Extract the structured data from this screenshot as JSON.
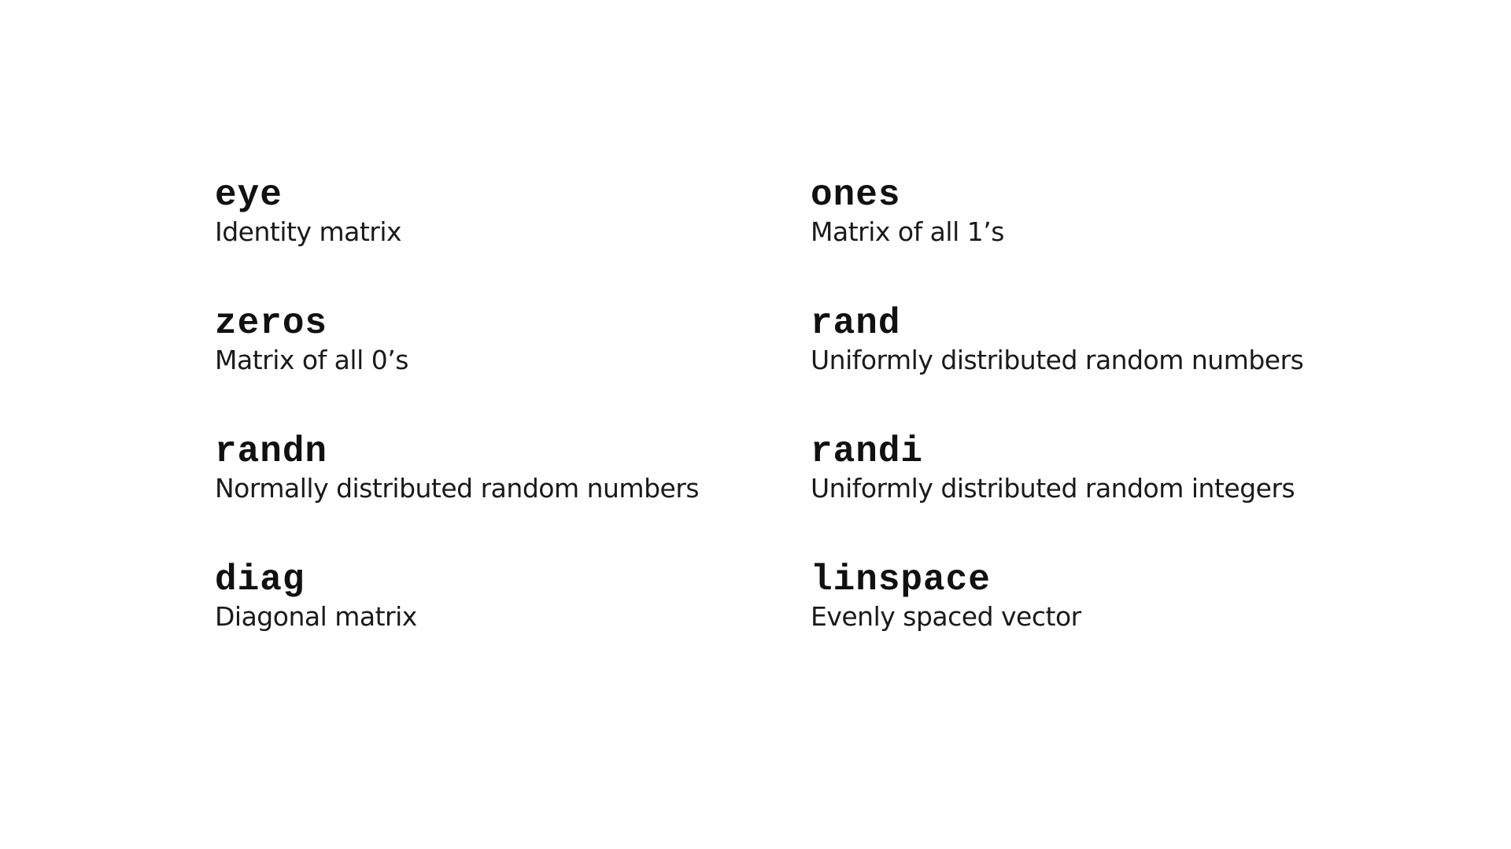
{
  "functions": [
    {
      "name": "eye",
      "description": "Identity matrix"
    },
    {
      "name": "ones",
      "description": "Matrix of all 1’s"
    },
    {
      "name": "zeros",
      "description": "Matrix of all 0’s"
    },
    {
      "name": "rand",
      "description": "Uniformly distributed random numbers"
    },
    {
      "name": "randn",
      "description": "Normally distributed random numbers"
    },
    {
      "name": "randi",
      "description": "Uniformly distributed random integers"
    },
    {
      "name": "diag",
      "description": "Diagonal matrix"
    },
    {
      "name": "linspace",
      "description": "Evenly spaced vector"
    }
  ]
}
